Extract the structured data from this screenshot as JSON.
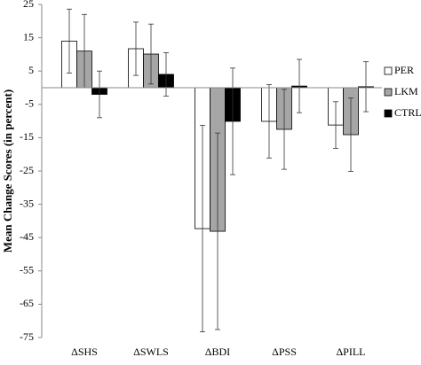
{
  "chart_data": {
    "type": "bar",
    "y_label": "Mean Change Scores (in percent)",
    "categories": [
      "ΔSHS",
      "ΔSWLS",
      "ΔBDI",
      "ΔPSS",
      "ΔPILL"
    ],
    "series": [
      {
        "name": "PER",
        "color": "#ffffff",
        "values": [
          14,
          11.7,
          -42.3,
          -10.1,
          -11.2
        ],
        "errors": [
          9.6,
          8,
          31,
          11,
          7
        ]
      },
      {
        "name": "LKM",
        "color": "#a6a6a6",
        "values": [
          11,
          10.1,
          -43.1,
          -12.5,
          -14.1
        ],
        "errors": [
          11,
          9,
          29.5,
          12,
          11
        ]
      },
      {
        "name": "CTRL",
        "color": "#000000",
        "values": [
          -2,
          4,
          -10.1,
          0.5,
          0.3
        ],
        "errors": [
          7,
          6.5,
          16,
          8,
          7.5
        ]
      }
    ],
    "ylim": [
      -75,
      25
    ],
    "yticks": [
      25,
      15,
      5,
      -5,
      -15,
      -25,
      -35,
      -45,
      -55,
      -65,
      -75
    ]
  }
}
